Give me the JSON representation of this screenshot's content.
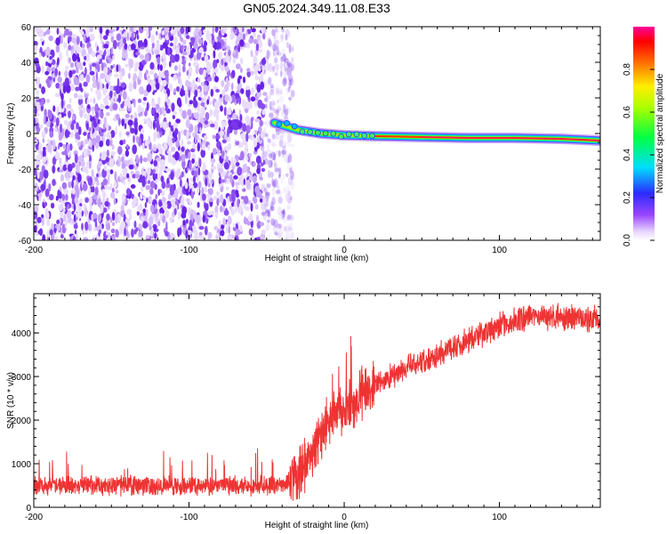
{
  "title": "GN05.2024.349.11.08.E33",
  "chart_data": [
    {
      "type": "heatmap",
      "xlabel": "Height of straight line (km)",
      "ylabel": "Frequency (Hz)",
      "xlim": [
        -200,
        165
      ],
      "ylim": [
        -60,
        60
      ],
      "xticks": [
        -200,
        -100,
        0,
        100
      ],
      "xtick_labels": [
        "-200",
        "-100",
        "0",
        "100"
      ],
      "yticks": [
        60,
        40,
        20,
        0,
        -20,
        -40,
        -60
      ],
      "ytick_labels": [
        "60",
        "40",
        "20",
        "0",
        "-20",
        "-40",
        "-60"
      ],
      "noise_region_x": [
        -200,
        -40
      ],
      "signal_track": [
        {
          "x": -45,
          "f": 6
        },
        {
          "x": -30,
          "f": 2
        },
        {
          "x": -15,
          "f": 0
        },
        {
          "x": 0,
          "f": -1
        },
        {
          "x": 20,
          "f": -1.5
        },
        {
          "x": 50,
          "f": -2
        },
        {
          "x": 80,
          "f": -2.5
        },
        {
          "x": 110,
          "f": -2.5
        },
        {
          "x": 140,
          "f": -3
        },
        {
          "x": 165,
          "f": -4
        }
      ],
      "colorbar": {
        "label": "Normalized spectral amplitude",
        "range": [
          0,
          1
        ],
        "ticks": [
          "0.0",
          "0.2",
          "0.4",
          "0.6",
          "0.8"
        ],
        "tick_values": [
          0,
          0.2,
          0.4,
          0.6,
          0.8
        ]
      }
    },
    {
      "type": "line",
      "xlabel": "Height of straight line (km)",
      "ylabel": "SNR (10 * v/v)",
      "xlim": [
        -200,
        165
      ],
      "ylim": [
        0,
        4900
      ],
      "xticks": [
        -200,
        -100,
        0,
        100
      ],
      "xtick_labels": [
        "-200",
        "-100",
        "0",
        "100"
      ],
      "yticks": [
        0,
        1000,
        2000,
        3000,
        4000
      ],
      "ytick_labels": [
        "0",
        "1000",
        "2000",
        "3000",
        "4000"
      ],
      "color": "#ee3333",
      "series_trend": [
        {
          "x": -200,
          "y": 500
        },
        {
          "x": -150,
          "y": 500
        },
        {
          "x": -100,
          "y": 500
        },
        {
          "x": -60,
          "y": 500
        },
        {
          "x": -40,
          "y": 520
        },
        {
          "x": -30,
          "y": 700
        },
        {
          "x": -20,
          "y": 1300
        },
        {
          "x": -10,
          "y": 2000
        },
        {
          "x": 0,
          "y": 2300
        },
        {
          "x": 10,
          "y": 2500
        },
        {
          "x": 20,
          "y": 2800
        },
        {
          "x": 40,
          "y": 3200
        },
        {
          "x": 60,
          "y": 3500
        },
        {
          "x": 80,
          "y": 3850
        },
        {
          "x": 100,
          "y": 4150
        },
        {
          "x": 120,
          "y": 4400
        },
        {
          "x": 140,
          "y": 4350
        },
        {
          "x": 165,
          "y": 4300
        }
      ]
    }
  ]
}
